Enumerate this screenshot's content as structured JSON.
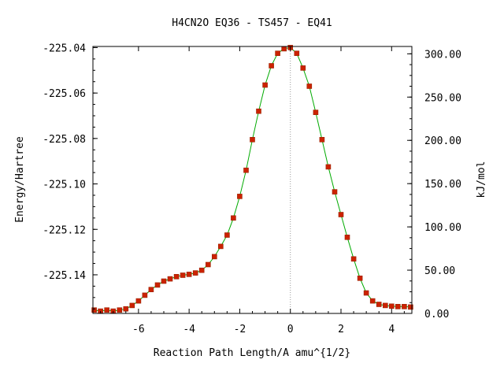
{
  "chart_data": {
    "type": "line",
    "title": "H4CN2O   EQ36 - TS457 - EQ41",
    "xlabel": "Reaction Path Length/A amu^{1/2}",
    "ylabel": "Energy/Hartree",
    "y2label": "kJ/mol",
    "xlim": [
      -7.8,
      4.8
    ],
    "ylim": [
      -225.157,
      -225.0395
    ],
    "y2lim": [
      0,
      308.5
    ],
    "x_ticks": [
      -6,
      -4,
      -2,
      0,
      2,
      4
    ],
    "x_tick_labels": [
      "-6",
      "-4",
      "-2",
      "0",
      "2",
      "4"
    ],
    "y_ticks": [
      -225.04,
      -225.06,
      -225.08,
      -225.1,
      -225.12,
      -225.14
    ],
    "y_tick_labels": [
      "-225.04",
      "-225.06",
      "-225.08",
      "-225.10",
      "-225.12",
      "-225.14"
    ],
    "y2_ticks": [
      300,
      250,
      200,
      150,
      100,
      50,
      0
    ],
    "y2_tick_labels": [
      "300.00",
      "250.00",
      "200.00",
      "150.00",
      "100.00",
      "50.00",
      "0.00"
    ],
    "ts_marker_x": 0,
    "grid": false,
    "colors": {
      "line": "#00aa00",
      "point": "#cc2200",
      "point_edge": "#992200",
      "ts_line": "#999999",
      "axes": "#000000"
    },
    "series": [
      {
        "x": [
          -7.75,
          -7.5,
          -7.25,
          -7.0,
          -6.75,
          -6.5,
          -6.25,
          -6.0,
          -5.75,
          -5.5,
          -5.25,
          -5.0,
          -4.75,
          -4.5,
          -4.25,
          -4.0,
          -3.75,
          -3.5,
          -3.25,
          -3.0,
          -2.75,
          -2.5,
          -2.25,
          -2.0,
          -1.75,
          -1.5,
          -1.25,
          -1.0,
          -0.75,
          -0.5,
          -0.25,
          0.0,
          0.25,
          0.5,
          0.75,
          1.0,
          1.25,
          1.5,
          1.75,
          2.0,
          2.25,
          2.5,
          2.75,
          3.0,
          3.25,
          3.5,
          3.75,
          4.0,
          4.25,
          4.5,
          4.75
        ],
        "y": [
          -225.1555,
          -225.156,
          -225.1555,
          -225.156,
          -225.1555,
          -225.155,
          -225.1535,
          -225.1515,
          -225.149,
          -225.1465,
          -225.1445,
          -225.1428,
          -225.1418,
          -225.1408,
          -225.1402,
          -225.1398,
          -225.1392,
          -225.138,
          -225.1355,
          -225.132,
          -225.1275,
          -225.1225,
          -225.115,
          -225.1055,
          -225.094,
          -225.0805,
          -225.068,
          -225.0565,
          -225.048,
          -225.0425,
          -225.0405,
          -225.04,
          -225.0425,
          -225.049,
          -225.057,
          -225.0685,
          -225.0805,
          -225.0925,
          -225.1035,
          -225.1135,
          -225.1235,
          -225.133,
          -225.1415,
          -225.148,
          -225.1515,
          -225.153,
          -225.1535,
          -225.1538,
          -225.154,
          -225.154,
          -225.1542
        ]
      }
    ]
  }
}
